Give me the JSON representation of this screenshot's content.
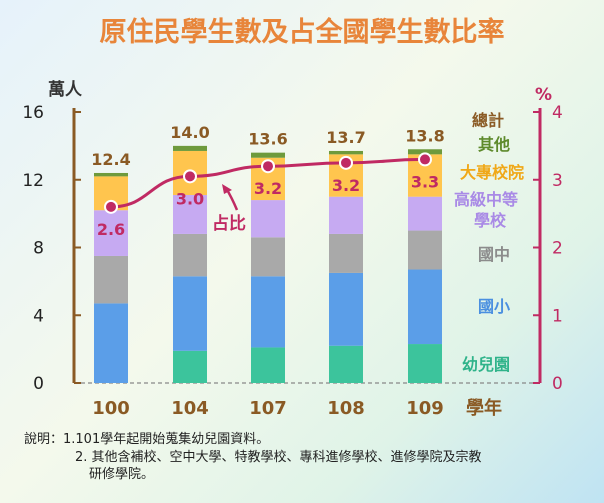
{
  "title": "原住民學生數及占全國學生數比率",
  "chart_data": {
    "type": "bar",
    "stacked": true,
    "categories": [
      "100",
      "104",
      "107",
      "108",
      "109"
    ],
    "xlabel": "學年",
    "ylabel": "萬人",
    "y2label": "%",
    "ylim": [
      0,
      16
    ],
    "y2lim": [
      0,
      4
    ],
    "yticks": [
      "0",
      "4",
      "8",
      "12",
      "16"
    ],
    "y2ticks": [
      "0",
      "1",
      "2",
      "3",
      "4"
    ],
    "series": [
      {
        "name": "幼兒園",
        "color": "#3cc49c",
        "values": [
          0,
          1.9,
          2.1,
          2.2,
          2.3
        ]
      },
      {
        "name": "國小",
        "color": "#5b9ee8",
        "values": [
          4.7,
          4.4,
          4.2,
          4.3,
          4.4
        ]
      },
      {
        "name": "國中",
        "color": "#a9a9a9",
        "values": [
          2.8,
          2.5,
          2.3,
          2.3,
          2.3
        ]
      },
      {
        "name": "高級中等學校",
        "color": "#c6aaf2",
        "values": [
          2.7,
          2.3,
          2.2,
          2.2,
          2.0
        ]
      },
      {
        "name": "大專校院",
        "color": "#ffc54e",
        "values": [
          2.0,
          2.6,
          2.5,
          2.5,
          2.5
        ]
      },
      {
        "name": "其他",
        "color": "#6e9a3c",
        "values": [
          0.2,
          0.3,
          0.3,
          0.2,
          0.3
        ]
      }
    ],
    "totals": [
      "12.4",
      "14.0",
      "13.6",
      "13.7",
      "13.8"
    ],
    "total_label": "總計",
    "ratio": {
      "name": "占比",
      "color": "#c02a63",
      "values": [
        2.6,
        3.05,
        3.2,
        3.25,
        3.3
      ],
      "labels": [
        "2.6",
        "3.0",
        "3.2",
        "3.2",
        "3.3"
      ]
    }
  },
  "notes": [
    "說明：1.101學年起開始蒐集幼兒園資料。",
    "2. 其他含補校、空中大學、特教學校、專科進修學校、進修學院及宗教",
    "研修學院。"
  ]
}
